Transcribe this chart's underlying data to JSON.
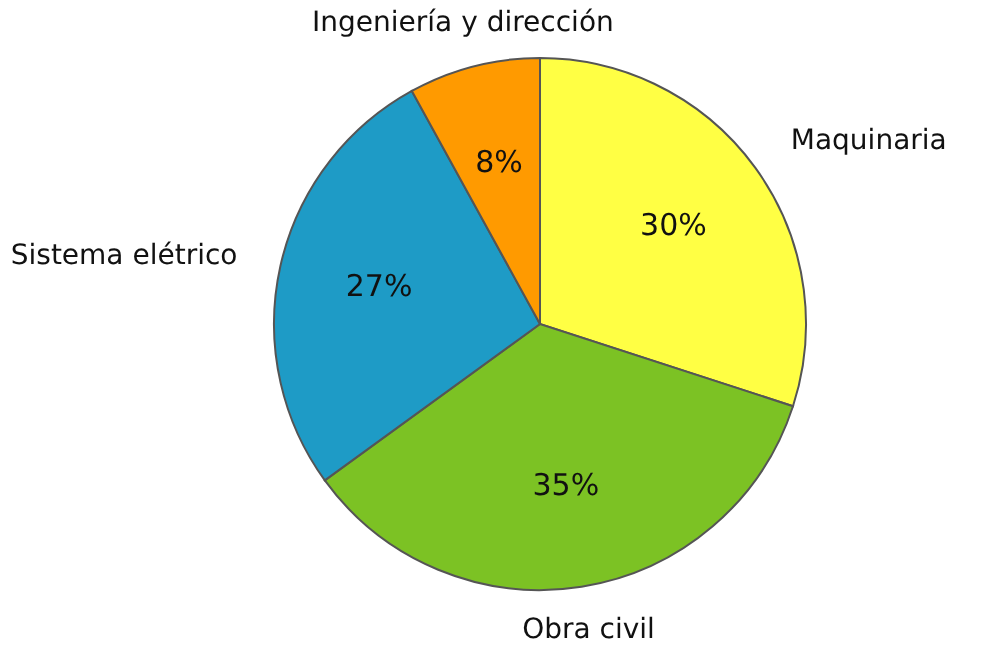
{
  "chart_data": {
    "type": "pie",
    "categories": [
      "Maquinaria",
      "Obra civil",
      "Sistema elétrico",
      "Ingeniería y dirección"
    ],
    "values": [
      30,
      35,
      27,
      8
    ],
    "colors": [
      "#ffff44",
      "#7cc224",
      "#1e9bc6",
      "#ff9a00"
    ],
    "value_labels": [
      "30%",
      "35%",
      "27%",
      "8%"
    ]
  }
}
